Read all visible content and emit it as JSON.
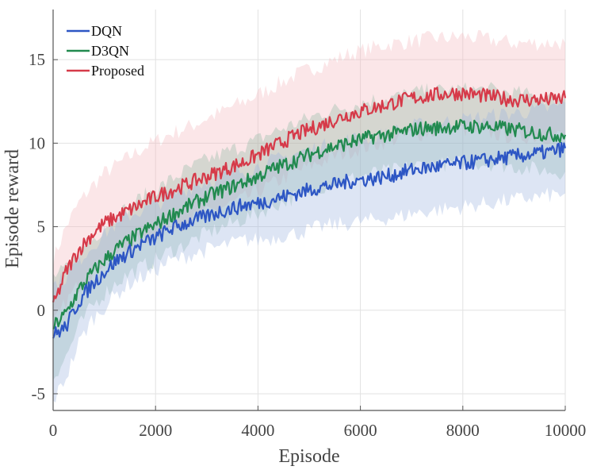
{
  "chart_data": {
    "type": "line",
    "xlabel": "Episode",
    "ylabel": "Episode reward",
    "xlim": [
      0,
      10000
    ],
    "ylim": [
      -6,
      18
    ],
    "xticks": [
      0,
      2000,
      4000,
      6000,
      8000,
      10000
    ],
    "yticks": [
      -5,
      0,
      5,
      10,
      15
    ],
    "xtick_labels": [
      "0",
      "2000",
      "4000",
      "6000",
      "8000",
      "10000"
    ],
    "ytick_labels": [
      "-5",
      "0",
      "5",
      "10",
      "15"
    ],
    "grid": true,
    "legend_position": "top-left",
    "x": [
      0,
      250,
      500,
      750,
      1000,
      1250,
      1500,
      1750,
      2000,
      2250,
      2500,
      2750,
      3000,
      3250,
      3500,
      3750,
      4000,
      4250,
      4500,
      4750,
      5000,
      5250,
      5500,
      5750,
      6000,
      6250,
      6500,
      6750,
      7000,
      7250,
      7500,
      7750,
      8000,
      8250,
      8500,
      8750,
      9000,
      9250,
      9500,
      9750,
      10000
    ],
    "series": [
      {
        "name": "DQN",
        "color": "#2d56c4",
        "band_color": "#9fb5e0",
        "values": [
          -1.5,
          -1.0,
          0.5,
          1.5,
          2.3,
          3.0,
          3.5,
          4.0,
          4.3,
          4.8,
          5.1,
          5.4,
          5.6,
          5.9,
          6.1,
          6.3,
          6.4,
          6.6,
          6.8,
          7.0,
          7.2,
          7.4,
          7.5,
          7.7,
          7.8,
          7.9,
          8.0,
          8.2,
          8.4,
          8.5,
          8.6,
          8.7,
          8.8,
          8.9,
          9.0,
          9.1,
          9.2,
          9.3,
          9.4,
          9.5,
          9.7
        ],
        "lower": [
          -5.5,
          -4.0,
          -2.0,
          -0.6,
          0.2,
          1.0,
          1.6,
          2.0,
          2.4,
          2.9,
          3.1,
          3.4,
          3.6,
          3.8,
          4.0,
          4.2,
          4.2,
          4.3,
          4.5,
          4.6,
          4.8,
          5.0,
          5.1,
          5.2,
          5.3,
          5.4,
          5.5,
          5.6,
          5.8,
          5.9,
          6.0,
          6.1,
          6.2,
          6.3,
          6.4,
          6.5,
          6.6,
          6.7,
          6.8,
          6.9,
          7.0
        ],
        "upper": [
          1.5,
          2.0,
          3.0,
          3.8,
          4.6,
          5.2,
          5.7,
          6.0,
          6.3,
          6.8,
          7.1,
          7.5,
          7.7,
          8.0,
          8.2,
          8.4,
          8.6,
          8.9,
          9.1,
          9.4,
          9.6,
          9.8,
          9.9,
          10.2,
          10.3,
          10.4,
          10.5,
          10.8,
          11.0,
          11.1,
          11.2,
          11.3,
          11.4,
          11.5,
          11.6,
          11.7,
          11.8,
          11.9,
          12.0,
          12.1,
          12.4
        ]
      },
      {
        "name": "D3QN",
        "color": "#218a4f",
        "band_color": "#8fb8a4",
        "values": [
          -1.0,
          -0.2,
          1.2,
          2.2,
          3.0,
          3.7,
          4.2,
          4.7,
          5.1,
          5.6,
          6.0,
          6.4,
          6.8,
          7.1,
          7.4,
          7.7,
          8.0,
          8.4,
          8.7,
          9.0,
          9.3,
          9.6,
          9.8,
          10.0,
          10.2,
          10.4,
          10.5,
          10.6,
          10.8,
          10.9,
          10.9,
          11.0,
          11.0,
          11.0,
          11.0,
          10.9,
          10.8,
          10.7,
          10.6,
          10.5,
          10.5
        ],
        "lower": [
          -4.0,
          -2.8,
          -1.0,
          0.2,
          1.0,
          1.7,
          2.2,
          2.6,
          3.0,
          3.5,
          3.8,
          4.2,
          4.6,
          4.9,
          5.2,
          5.5,
          5.8,
          6.2,
          6.5,
          6.8,
          7.1,
          7.4,
          7.6,
          7.8,
          8.0,
          8.2,
          8.3,
          8.4,
          8.6,
          8.7,
          8.7,
          8.8,
          8.8,
          8.8,
          8.8,
          8.7,
          8.6,
          8.5,
          8.4,
          8.3,
          8.3
        ],
        "upper": [
          2.0,
          2.4,
          3.4,
          4.2,
          5.0,
          5.7,
          6.2,
          6.8,
          7.2,
          7.7,
          8.2,
          8.6,
          9.0,
          9.3,
          9.6,
          9.9,
          10.2,
          10.6,
          10.9,
          11.2,
          11.5,
          11.8,
          12.0,
          12.2,
          12.4,
          12.6,
          12.7,
          12.8,
          13.0,
          13.1,
          13.1,
          13.2,
          13.2,
          13.2,
          13.2,
          13.1,
          13.0,
          12.9,
          12.8,
          12.7,
          12.7
        ]
      },
      {
        "name": "Proposed",
        "color": "#d63a49",
        "band_color": "#f3b8bc",
        "values": [
          0.2,
          2.3,
          3.6,
          4.5,
          5.2,
          5.6,
          6.0,
          6.4,
          6.8,
          7.1,
          7.4,
          7.7,
          8.0,
          8.3,
          8.6,
          8.9,
          9.3,
          9.7,
          10.1,
          10.5,
          10.8,
          11.1,
          11.4,
          11.7,
          11.9,
          12.1,
          12.3,
          12.5,
          12.7,
          12.8,
          12.9,
          13.0,
          13.0,
          12.9,
          12.8,
          12.7,
          12.6,
          12.6,
          12.6,
          12.6,
          12.7
        ],
        "lower": [
          -1.0,
          0.5,
          1.5,
          2.3,
          3.0,
          3.4,
          3.8,
          4.2,
          4.6,
          4.9,
          5.2,
          5.5,
          5.8,
          6.1,
          6.4,
          6.7,
          7.1,
          7.5,
          7.9,
          8.3,
          8.6,
          8.9,
          9.2,
          9.5,
          9.7,
          9.9,
          10.1,
          10.3,
          10.5,
          10.6,
          10.7,
          10.8,
          10.8,
          10.7,
          10.6,
          10.5,
          10.4,
          10.4,
          10.4,
          10.4,
          10.5
        ],
        "upper": [
          3.0,
          5.0,
          6.4,
          7.4,
          8.2,
          8.7,
          9.2,
          9.7,
          10.1,
          10.5,
          10.8,
          11.1,
          11.5,
          11.8,
          12.2,
          12.5,
          12.9,
          13.3,
          13.7,
          14.1,
          14.4,
          14.7,
          15.0,
          15.3,
          15.5,
          15.7,
          15.9,
          16.0,
          16.1,
          16.2,
          16.3,
          16.3,
          16.4,
          16.3,
          16.2,
          16.1,
          16.0,
          16.0,
          16.0,
          16.0,
          16.0
        ]
      }
    ]
  }
}
